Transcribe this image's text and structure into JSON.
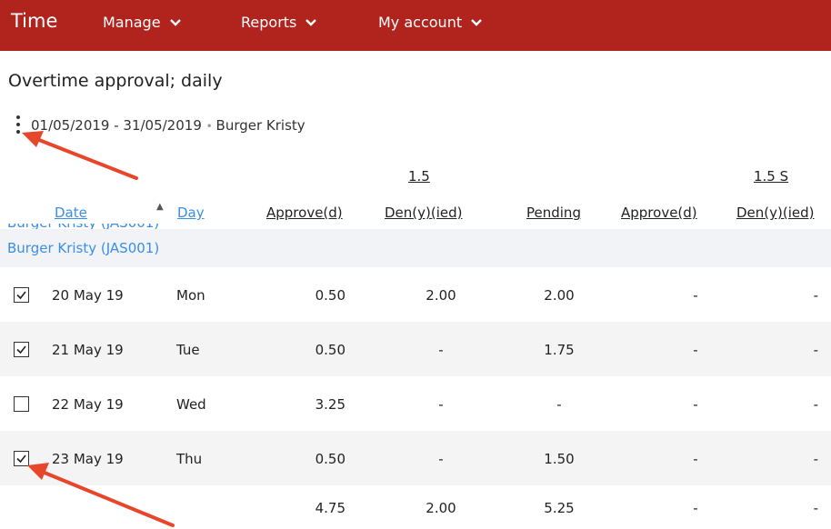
{
  "app": {
    "title": "Time"
  },
  "nav": [
    {
      "label": "Manage"
    },
    {
      "label": "Reports"
    },
    {
      "label": "My account"
    }
  ],
  "page": {
    "title": "Overtime approval; daily",
    "range_text": "01/05/2019 - 31/05/2019",
    "employee_filter": "Burger Kristy"
  },
  "table": {
    "group_headers": {
      "g1": "1.5",
      "g2": "1.5 S"
    },
    "columns": {
      "date": "Date",
      "day": "Day",
      "approved": "Approve(d)",
      "denied": "Den(y)(ied)",
      "pending": "Pending",
      "approved2": "Approve(d)",
      "denied2": "Den(y)(ied)"
    },
    "group_label": "Burger Kristy (JAS001)",
    "rows": [
      {
        "checked": true,
        "date": "20 May 19",
        "day": "Mon",
        "approved": "0.50",
        "denied": "2.00",
        "pending": "2.00",
        "approved2": "-",
        "denied2": "-"
      },
      {
        "checked": true,
        "date": "21 May 19",
        "day": "Tue",
        "approved": "0.50",
        "denied": "-",
        "pending": "1.75",
        "approved2": "-",
        "denied2": "-"
      },
      {
        "checked": false,
        "date": "22 May 19",
        "day": "Wed",
        "approved": "3.25",
        "denied": "-",
        "pending": "-",
        "approved2": "-",
        "denied2": "-"
      },
      {
        "checked": true,
        "date": "23 May 19",
        "day": "Thu",
        "approved": "0.50",
        "denied": "-",
        "pending": "1.50",
        "approved2": "-",
        "denied2": "-"
      }
    ],
    "totals": {
      "approved": "4.75",
      "denied": "2.00",
      "pending": "5.25",
      "approved2": "-",
      "denied2": "-"
    }
  },
  "colors": {
    "header": "#b1241e",
    "link": "#3a8ee6",
    "annotation": "#e8462b"
  },
  "icons": [
    "chevron-down-icon",
    "kebab-menu-icon",
    "sort-ascending-icon",
    "checkbox-checked-icon",
    "checkbox-unchecked-icon",
    "annotation-arrow"
  ]
}
